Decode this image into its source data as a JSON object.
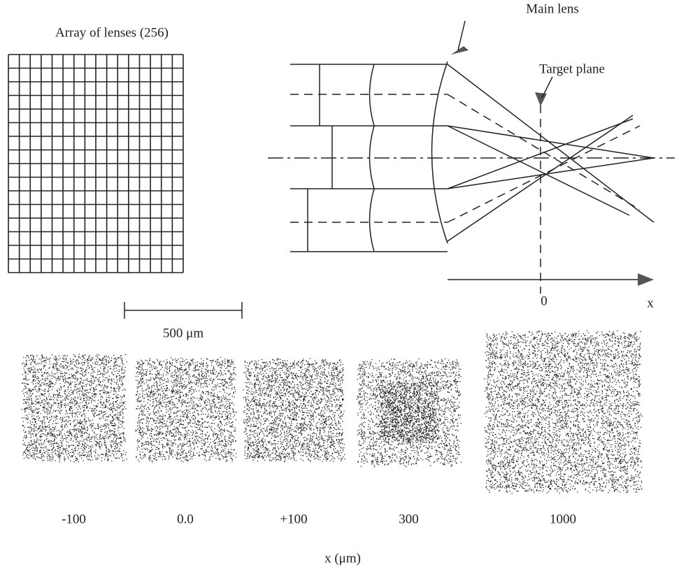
{
  "left_panel": {
    "title": "Array of  lenses (256)",
    "scale_bar": "500 μm"
  },
  "optics": {
    "main_lens": "Main lens",
    "target_plane": "Target plane",
    "origin": "0",
    "axis": "x"
  },
  "patterns": {
    "labels": [
      "-100",
      "0.0",
      "+100",
      "300",
      "1000"
    ],
    "axis_label": "x (μm)"
  }
}
